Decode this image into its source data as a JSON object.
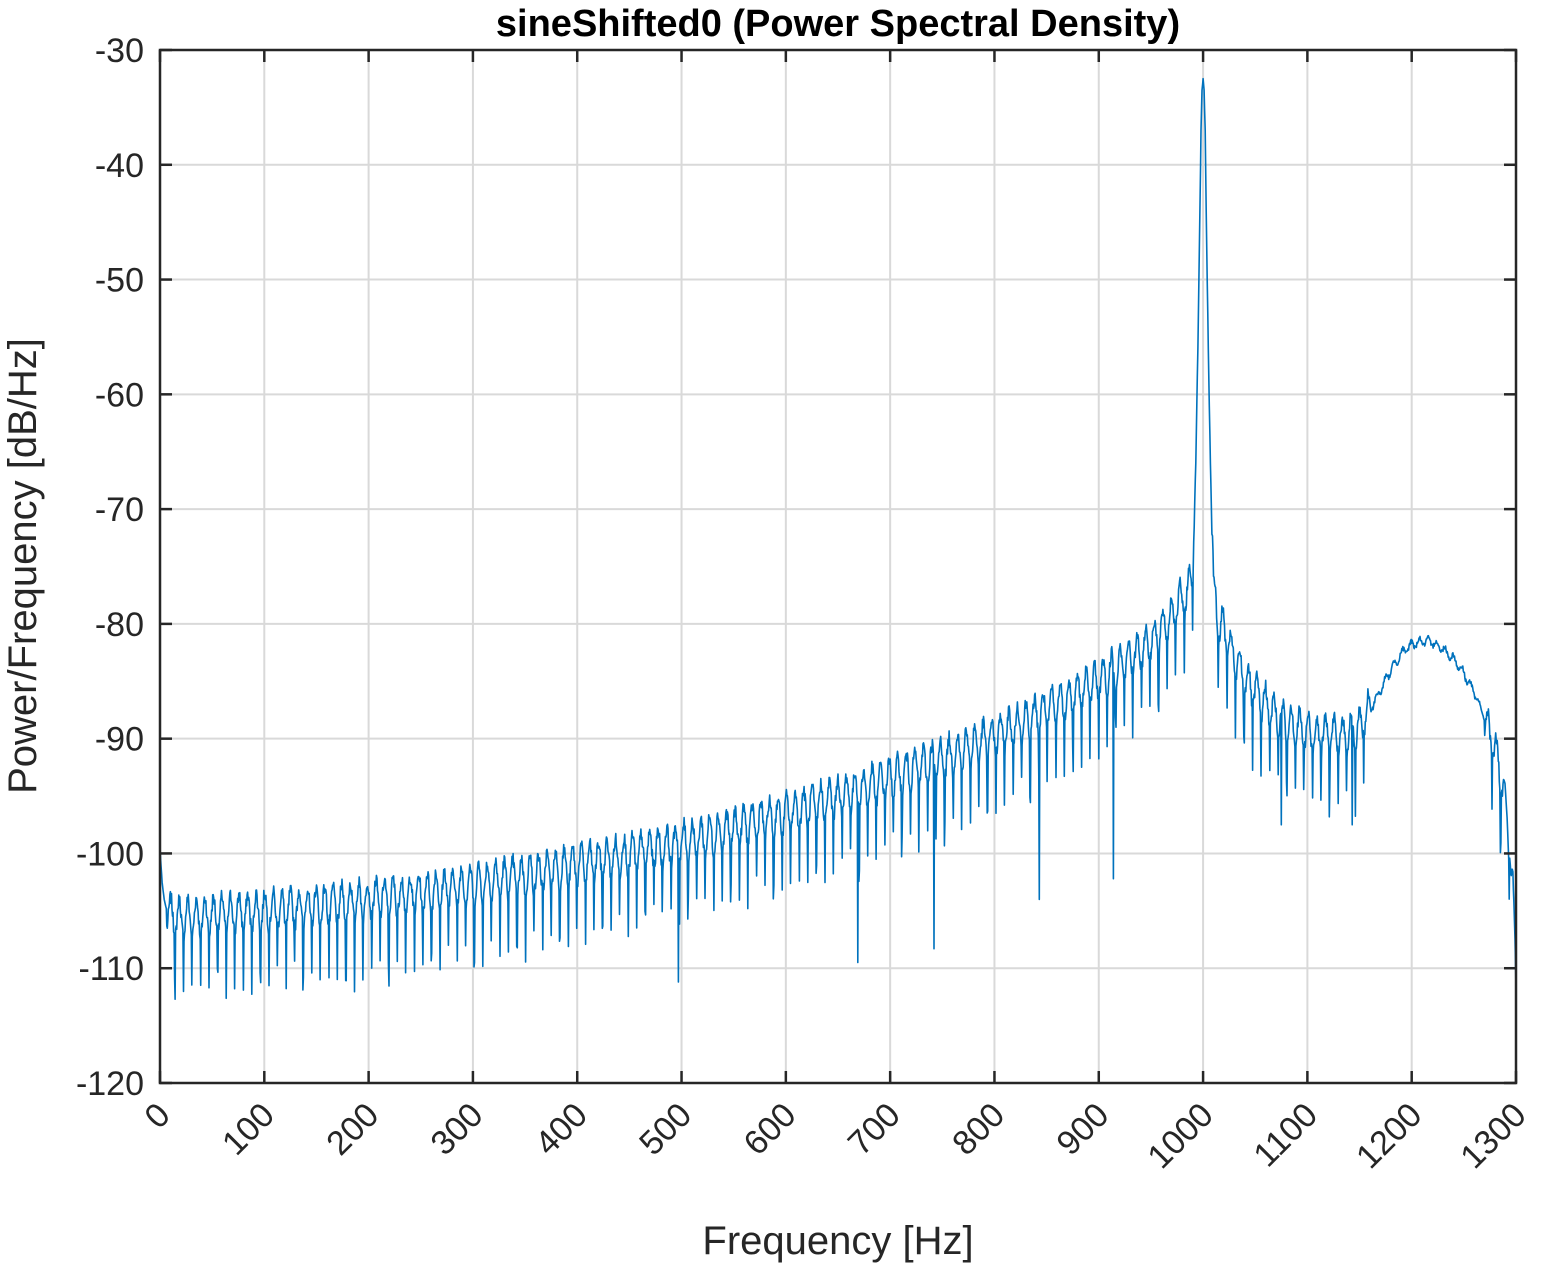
{
  "chart_data": {
    "type": "line",
    "title": "sineShifted0 (Power Spectral Density)",
    "xlabel": "Frequency [Hz]",
    "ylabel": "Power/Frequency [dB/Hz]",
    "xlim": [
      0,
      1300
    ],
    "ylim": [
      -120,
      -30
    ],
    "grid": true,
    "legend": "none",
    "xticks": [
      0,
      100,
      200,
      300,
      400,
      500,
      600,
      700,
      800,
      900,
      1000,
      1100,
      1200,
      1300
    ],
    "xtick_labels": [
      "0",
      "100",
      "200",
      "300",
      "400",
      "500",
      "600",
      "700",
      "800",
      "900",
      "1000",
      "1100",
      "1200",
      "1300"
    ],
    "yticks": [
      -120,
      -110,
      -100,
      -90,
      -80,
      -70,
      -60,
      -50,
      -40,
      -30
    ],
    "ytick_labels": [
      "-120",
      "-110",
      "-100",
      "-90",
      "-80",
      "-70",
      "-60",
      "-50",
      "-40",
      "-30"
    ],
    "series": [
      {
        "color": "#0072bd",
        "x": [
          0,
          2,
          4,
          6,
          8,
          10,
          13,
          16,
          20,
          25,
          30,
          40,
          50,
          60,
          80,
          100,
          120,
          140,
          160,
          180,
          200,
          220,
          240,
          260,
          280,
          300,
          320,
          340,
          360,
          380,
          400,
          420,
          440,
          460,
          480,
          500,
          520,
          540,
          560,
          580,
          600,
          620,
          640,
          660,
          680,
          700,
          720,
          740,
          760,
          780,
          800,
          820,
          840,
          860,
          880,
          900,
          920,
          940,
          950,
          960,
          970,
          975,
          980,
          985,
          990,
          993,
          995,
          997,
          998,
          999,
          1000,
          1001,
          1002,
          1003,
          1005,
          1007,
          1010,
          1015,
          1020,
          1025,
          1030,
          1040,
          1050,
          1060,
          1070,
          1080,
          1090,
          1100,
          1110,
          1120,
          1130,
          1140,
          1150,
          1160,
          1170,
          1180,
          1190,
          1200,
          1210,
          1220,
          1230,
          1240,
          1250,
          1260,
          1270,
          1280,
          1285,
          1290,
          1293,
          1295,
          1297,
          1299,
          1300
        ],
        "y": [
          -99.6,
          -102.5,
          -104.0,
          -104.8,
          -105.2,
          -105.4,
          -105.5,
          -105.6,
          -105.6,
          -105.6,
          -105.5,
          -105.5,
          -105.4,
          -105.3,
          -105.2,
          -105.0,
          -104.9,
          -104.7,
          -104.5,
          -104.3,
          -104.0,
          -103.8,
          -103.6,
          -103.3,
          -103.0,
          -102.7,
          -102.4,
          -102.1,
          -101.8,
          -101.4,
          -101.0,
          -100.7,
          -100.3,
          -99.9,
          -99.5,
          -99.1,
          -98.6,
          -98.1,
          -97.6,
          -97.1,
          -96.6,
          -96.0,
          -95.4,
          -94.8,
          -94.2,
          -93.5,
          -92.8,
          -92.1,
          -91.4,
          -90.6,
          -89.8,
          -88.9,
          -88.0,
          -87.0,
          -86.0,
          -84.9,
          -83.7,
          -82.3,
          -81.5,
          -80.6,
          -79.3,
          -78.5,
          -77.8,
          -77.8,
          -74.5,
          -66.0,
          -56.0,
          -44.0,
          -37.0,
          -33.5,
          -32.5,
          -33.5,
          -37.0,
          -44.0,
          -56.0,
          -66.0,
          -77.0,
          -80.0,
          -80.5,
          -82.0,
          -83.0,
          -84.8,
          -86.0,
          -87.0,
          -88.0,
          -88.5,
          -89.0,
          -89.5,
          -89.7,
          -89.6,
          -89.8,
          -89.5,
          -89.0,
          -87.5,
          -85.8,
          -84.0,
          -82.6,
          -81.8,
          -81.5,
          -81.6,
          -82.2,
          -83.0,
          -84.3,
          -86.0,
          -88.2,
          -91.0,
          -93.0,
          -96.0,
          -98.5,
          -100.5,
          -103.5,
          -108.0,
          -112.0
        ]
      }
    ]
  }
}
